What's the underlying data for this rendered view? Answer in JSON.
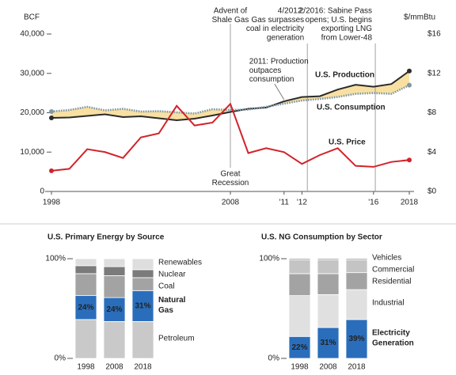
{
  "chart_data": [
    {
      "type": "line",
      "x": [
        1998,
        1999,
        2000,
        2001,
        2002,
        2003,
        2004,
        2005,
        2006,
        2007,
        2008,
        2009,
        2010,
        2011,
        2012,
        2013,
        2014,
        2015,
        2016,
        2017,
        2018
      ],
      "xlim": [
        1998,
        2018
      ],
      "xticks": [
        1998,
        2008,
        {
          "value": 2011,
          "label": "'11"
        },
        {
          "value": 2012,
          "label": "'12"
        },
        {
          "value": 2016,
          "label": "'16"
        },
        2018
      ],
      "ylabel": "BCF",
      "ylim": [
        0,
        40000
      ],
      "yticks": [
        0,
        {
          "value": 10000,
          "label": "10,000"
        },
        {
          "value": 20000,
          "label": "20,000"
        },
        {
          "value": 30000,
          "label": "30,000"
        },
        {
          "value": 40000,
          "label": "40,000"
        }
      ],
      "y2label": "$/mmBtu",
      "y2lim": [
        0,
        16
      ],
      "y2ticks": [
        {
          "value": 0,
          "label": "$0"
        },
        {
          "value": 4,
          "label": "$4"
        },
        {
          "value": 8,
          "label": "$8"
        },
        {
          "value": 12,
          "label": "$12"
        },
        {
          "value": 16,
          "label": "$16"
        }
      ],
      "fill_between_color": "#f8e0a3",
      "series": [
        {
          "name": "U.S. Production",
          "color": "#2b2b2b",
          "values": [
            18700,
            18800,
            19200,
            19600,
            18900,
            19100,
            18600,
            18100,
            18500,
            19300,
            20200,
            21000,
            21300,
            22900,
            24000,
            24200,
            25900,
            27100,
            26600,
            27300,
            30600
          ]
        },
        {
          "name": "U.S. Consumption",
          "color": "#7f98a6",
          "values": [
            20300,
            20700,
            21500,
            20600,
            21000,
            20300,
            20400,
            20100,
            19800,
            20900,
            20700,
            20800,
            21500,
            22300,
            23100,
            23500,
            24000,
            24800,
            25000,
            24800,
            27000
          ]
        },
        {
          "name": "U.S. Price",
          "color": "#d2232a",
          "axis": "y2",
          "values": [
            2.1,
            2.3,
            4.3,
            4.0,
            3.4,
            5.5,
            5.9,
            8.7,
            6.7,
            7.0,
            8.9,
            3.9,
            4.4,
            4.0,
            2.8,
            3.7,
            4.4,
            2.6,
            2.5,
            3.0,
            3.2
          ]
        }
      ],
      "annotations": [
        {
          "x": 2008,
          "lines": [
            "Advent of",
            "Shale Gas"
          ]
        },
        {
          "x": 2008,
          "lines": [
            "Great",
            "Recession"
          ]
        },
        {
          "x": 2012.3,
          "lines": [
            "4/2012:",
            "Gas surpasses",
            "coal in electricity",
            "generation"
          ]
        },
        {
          "x": 2016.1,
          "lines": [
            "2/2016: Sabine Pass",
            "opens; U.S. begins",
            "exporting LNG",
            "from Lower-48"
          ]
        },
        {
          "x": 2011,
          "lines": [
            "2011: Production",
            "outpaces",
            "consumption"
          ]
        }
      ]
    },
    {
      "type": "stacked_bar",
      "title": "U.S. Primary Energy by Source",
      "categories": [
        "1998",
        "2008",
        "2018"
      ],
      "ylim": [
        0,
        100
      ],
      "yticks": [
        {
          "value": 0,
          "label": "0%"
        },
        {
          "value": 100,
          "label": "100%"
        }
      ],
      "series": [
        {
          "name": "Petroleum",
          "color": "#c9c9c9",
          "values": [
            39,
            37,
            37
          ]
        },
        {
          "name": "Natural Gas",
          "color": "#2a6ebb",
          "values": [
            24,
            24,
            31
          ],
          "value_labels": [
            "24%",
            "24%",
            "31%"
          ]
        },
        {
          "name": "Coal",
          "color": "#a3a3a3",
          "values": [
            22,
            22,
            13
          ]
        },
        {
          "name": "Nuclear",
          "color": "#7b7b7b",
          "values": [
            8,
            9,
            8
          ]
        },
        {
          "name": "Renewables",
          "color": "#dedede",
          "values": [
            7,
            8,
            11
          ]
        }
      ]
    },
    {
      "type": "stacked_bar",
      "title": "U.S. NG Consumption by Sector",
      "categories": [
        "1998",
        "2008",
        "2018"
      ],
      "ylim": [
        0,
        100
      ],
      "yticks": [
        {
          "value": 0,
          "label": "0%"
        },
        {
          "value": 100,
          "label": "100%"
        }
      ],
      "series": [
        {
          "name": "Electricity Generation",
          "color": "#2a6ebb",
          "values": [
            22,
            31,
            39
          ],
          "value_labels": [
            "22%",
            "31%",
            "39%"
          ]
        },
        {
          "name": "Industrial",
          "color": "#e0e0e0",
          "values": [
            41,
            33,
            30
          ]
        },
        {
          "name": "Residential",
          "color": "#a3a3a3",
          "values": [
            22,
            21,
            17
          ]
        },
        {
          "name": "Commercial",
          "color": "#c4c4c4",
          "values": [
            14,
            14,
            13
          ]
        },
        {
          "name": "Vehicles",
          "color": "#555555",
          "values": [
            1,
            1,
            1
          ]
        }
      ]
    }
  ]
}
